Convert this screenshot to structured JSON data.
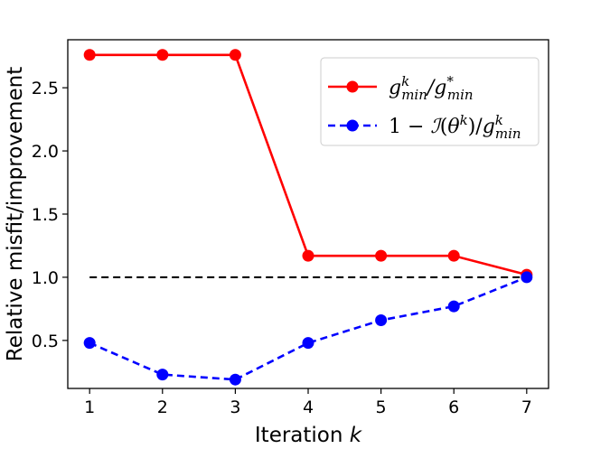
{
  "chart_data": {
    "type": "line",
    "xlabel": "Iteration",
    "xlabel_var": "k",
    "ylabel": "Relative misfit/improvement",
    "x": [
      1,
      2,
      3,
      4,
      5,
      6,
      7
    ],
    "x_ticks": [
      "1",
      "2",
      "3",
      "4",
      "5",
      "6",
      "7"
    ],
    "y_ticks": [
      "0.5",
      "1.0",
      "1.5",
      "2.0",
      "2.5"
    ],
    "y_tick_values": [
      0.5,
      1.0,
      1.5,
      2.0,
      2.5
    ],
    "xlim": [
      0.7,
      7.3
    ],
    "ylim": [
      0.12,
      2.88
    ],
    "grid": false,
    "legend_position": "top-right",
    "reference_line": {
      "y": 1.0,
      "x_start": 1,
      "x_end": 7,
      "color": "#000000",
      "style": "dashed"
    },
    "series": [
      {
        "name": "g_min^k / g_min^*",
        "values": [
          2.76,
          2.76,
          2.76,
          1.17,
          1.17,
          1.17,
          1.02
        ],
        "color": "#ff0000",
        "style": "solid",
        "marker": "circle"
      },
      {
        "name": "1 − I(θ^k) / g_min^k",
        "values": [
          0.48,
          0.23,
          0.19,
          0.48,
          0.66,
          0.77,
          1.0
        ],
        "color": "#0000ff",
        "style": "dashed",
        "marker": "circle"
      }
    ]
  }
}
